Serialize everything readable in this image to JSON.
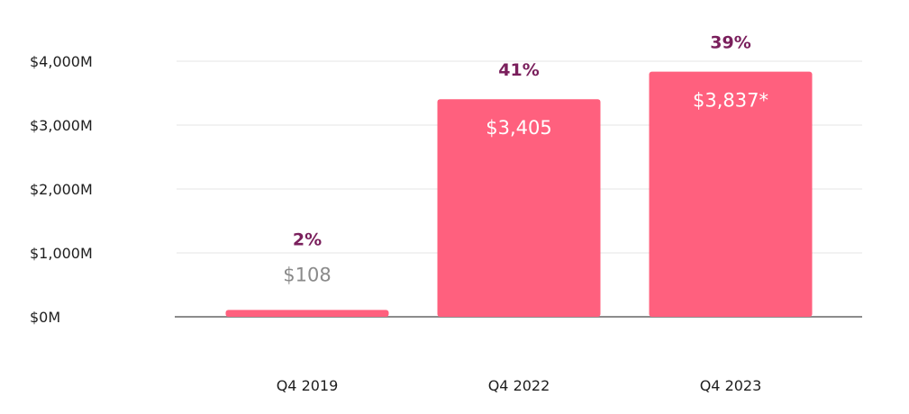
{
  "chart_data": {
    "type": "bar",
    "title": "",
    "xlabel": "",
    "ylabel": "",
    "categories": [
      "Q4 2019",
      "Q4 2022",
      "Q4 2023"
    ],
    "values": [
      108,
      3405,
      3837
    ],
    "value_labels": [
      "$108",
      "$3,405",
      "$3,837*"
    ],
    "percent_labels": [
      "2%",
      "41%",
      "39%"
    ],
    "ylim": [
      0,
      4000
    ],
    "yticks": [
      0,
      1000,
      2000,
      3000,
      4000
    ],
    "ytick_labels": [
      "$0M",
      "$1,000M",
      "$2,000M",
      "$3,000M",
      "$4,000M"
    ],
    "grid": true,
    "legend": "none"
  },
  "colors": {
    "bar": "#ff607e",
    "percent_label": "#7a1f5c",
    "value_label_inside": "#ffffff",
    "value_label_outside": "#8a8a8a",
    "gridline": "#e6e6e6",
    "baseline": "#8c8c8c",
    "tick_text": "#1e1e1e"
  }
}
